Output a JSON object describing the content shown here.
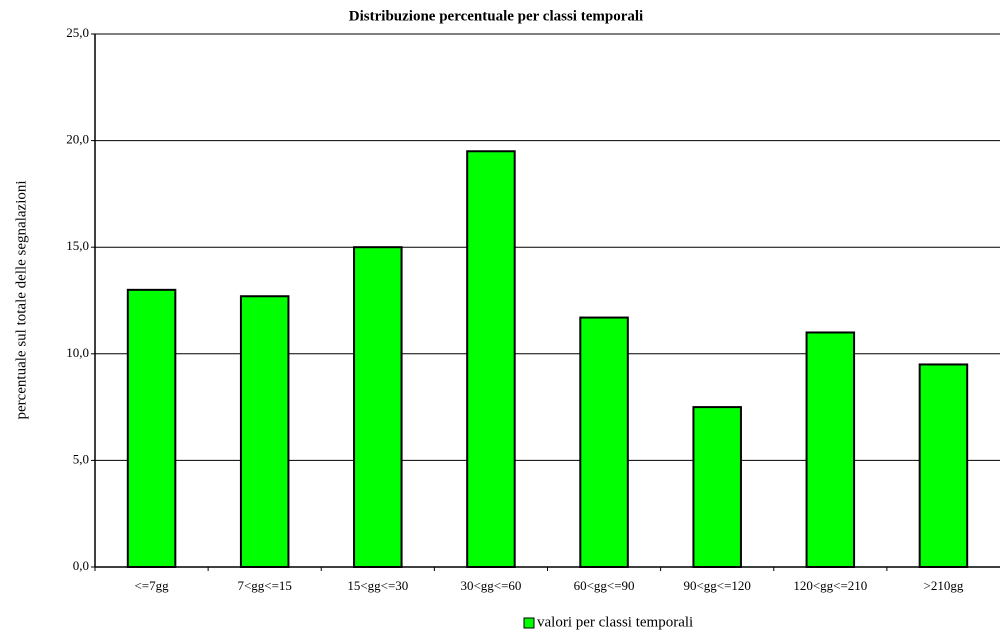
{
  "chart_data": {
    "type": "bar",
    "title": "Distribuzione percentuale per classi temporali",
    "y_label": "percentuale sul totale delle segnalazioni",
    "categories": [
      "<=7gg",
      "7<gg<=15",
      "15<gg<=30",
      "30<gg<=60",
      "60<gg<=90",
      "90<gg<=120",
      "120<gg<=210",
      ">210gg"
    ],
    "series": [
      {
        "name": "valori per classi temporali",
        "color": "#00ff00",
        "values": [
          13.0,
          12.7,
          15.0,
          19.5,
          11.7,
          7.5,
          11.0,
          9.5
        ]
      }
    ],
    "ylim": [
      0,
      25
    ],
    "yticks": [
      {
        "value": 0,
        "label": "0,0"
      },
      {
        "value": 5,
        "label": "5,0"
      },
      {
        "value": 10,
        "label": "10,0"
      },
      {
        "value": 15,
        "label": "15,0"
      },
      {
        "value": 20,
        "label": "20,0"
      },
      {
        "value": 25,
        "label": "25,0"
      }
    ],
    "grid": true,
    "legend": "bottom"
  }
}
